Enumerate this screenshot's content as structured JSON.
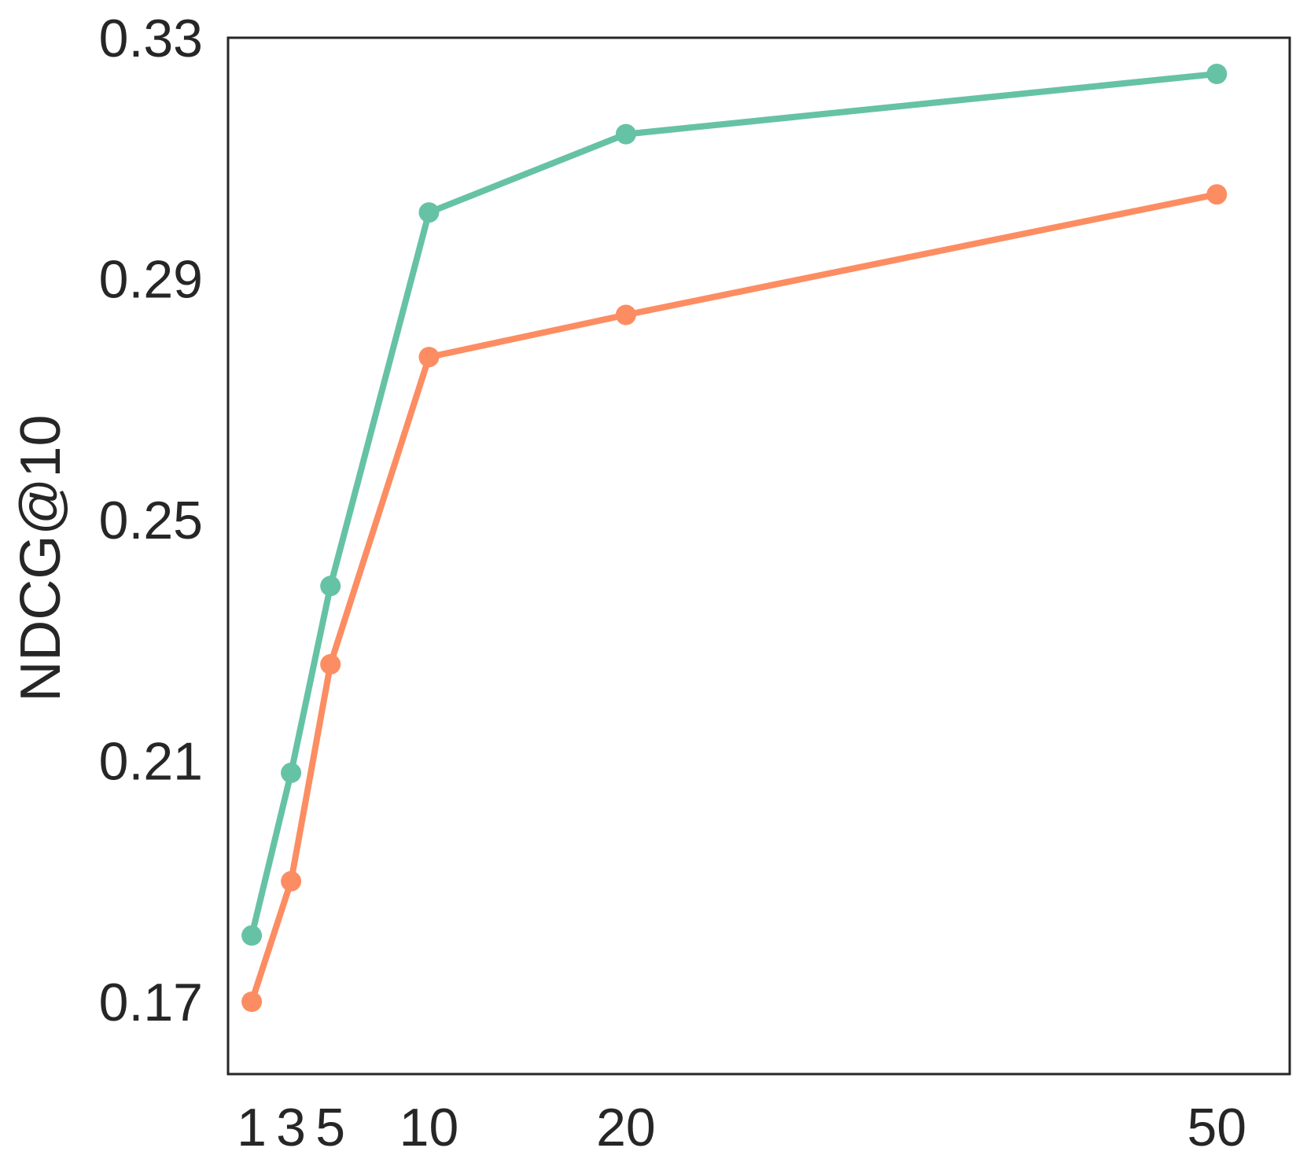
{
  "chart_data": {
    "type": "line",
    "title": "",
    "xlabel": "",
    "ylabel": "NDCG@10",
    "x": [
      1,
      3,
      5,
      10,
      20,
      50
    ],
    "x_tick_labels": [
      "1",
      "3",
      "5",
      "10",
      "20",
      "50"
    ],
    "ylim": [
      0.158,
      0.33
    ],
    "y_ticks": [
      0.17,
      0.21,
      0.25,
      0.29,
      0.33
    ],
    "y_tick_labels": [
      "0.17",
      "0.21",
      "0.25",
      "0.29",
      "0.33"
    ],
    "grid": false,
    "legend": "none",
    "series": [
      {
        "color": "#66c2a5",
        "values": [
          0.181,
          0.208,
          0.239,
          0.301,
          0.314,
          0.324
        ]
      },
      {
        "color": "#fc8d62",
        "values": [
          0.17,
          0.19,
          0.226,
          0.277,
          0.284,
          0.304
        ]
      }
    ]
  }
}
